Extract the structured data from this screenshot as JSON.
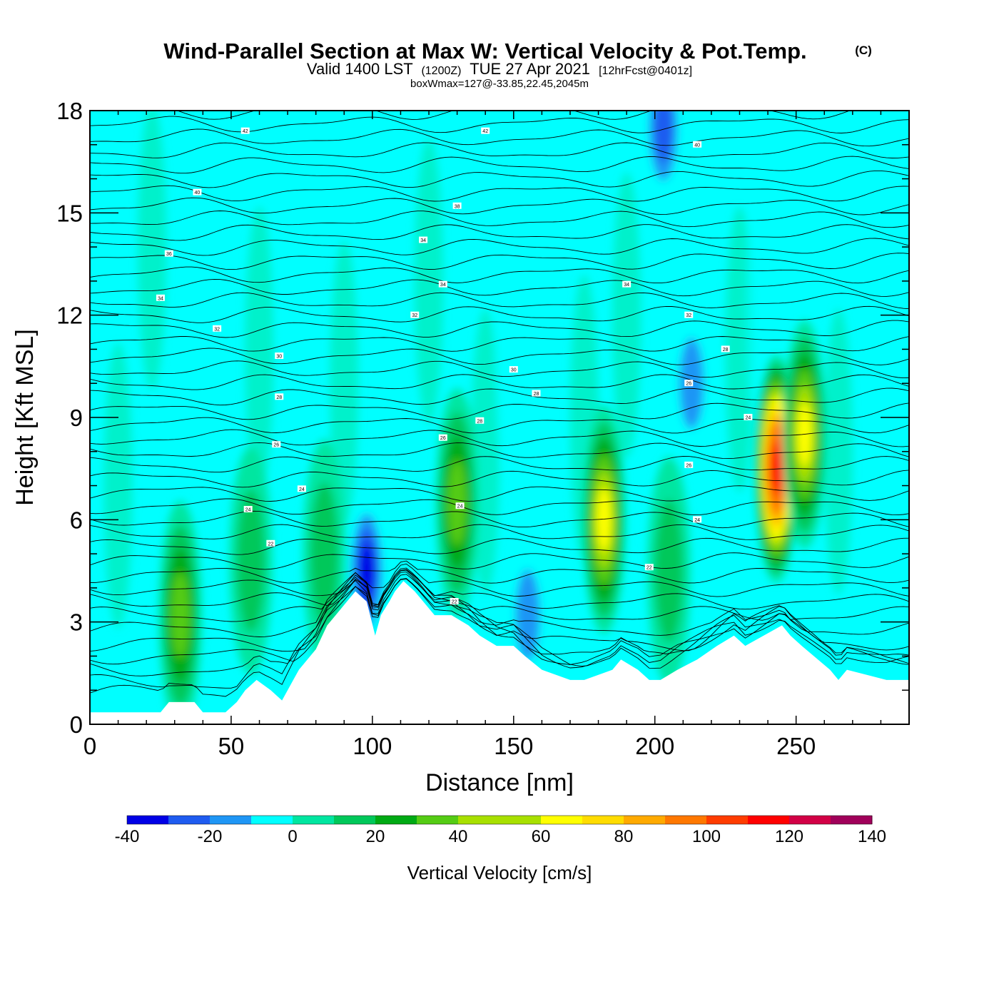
{
  "header": {
    "title_main": "Wind-Parallel Section at Max W: Vertical Velocity & Pot.Temp.",
    "title_mark": "(C)",
    "sub_part1": "Valid 1400 LST",
    "sub_part2": "(1200Z)",
    "sub_part3": "TUE 27 Apr 2021",
    "sub_part4": "[12hrFcst@0401z]",
    "box_info": "boxWmax=127@-33.85,22.45,2045m"
  },
  "chart_data": {
    "type": "heatmap",
    "xlabel": "Distance [nm]",
    "ylabel": "Height [Kft MSL]",
    "xlim": [
      0,
      290
    ],
    "ylim": [
      0,
      18
    ],
    "x_ticks": [
      0,
      50,
      100,
      150,
      200,
      250
    ],
    "y_ticks": [
      0,
      3,
      6,
      9,
      12,
      15,
      18
    ],
    "colorbar": {
      "label": "Vertical Velocity [cm/s]",
      "tick_values": [
        "-40",
        "-20",
        "0",
        "20",
        "40",
        "60",
        "80",
        "100",
        "120",
        "140"
      ],
      "levels": [
        -40,
        140
      ],
      "colors": [
        "#0000e6",
        "#1f5cf0",
        "#1f96f5",
        "#00ffff",
        "#00e6a0",
        "#00c85a",
        "#00aa14",
        "#55cc14",
        "#a8e000",
        "#ffff00",
        "#ffdc00",
        "#ffaa00",
        "#ff7800",
        "#ff3c00",
        "#ff0000",
        "#d20046",
        "#a0005a"
      ]
    },
    "background_color": "#00ffff",
    "updraft_cores": [
      {
        "x": 32,
        "y": 3.2,
        "peak": 40
      },
      {
        "x": 57,
        "y": 4.8,
        "peak": 25
      },
      {
        "x": 83,
        "y": 5.0,
        "peak": 25
      },
      {
        "x": 130,
        "y": 6.5,
        "peak": 40
      },
      {
        "x": 182,
        "y": 6.0,
        "peak": 60
      },
      {
        "x": 205,
        "y": 4.5,
        "peak": 25
      },
      {
        "x": 243,
        "y": 7.5,
        "peak": 120
      },
      {
        "x": 253,
        "y": 8.5,
        "peak": 60
      }
    ],
    "downdraft_cores": [
      {
        "x": 98,
        "y": 4.5,
        "peak": -40
      },
      {
        "x": 155,
        "y": 3.2,
        "peak": -25
      },
      {
        "x": 203,
        "y": 17.5,
        "peak": -30
      },
      {
        "x": 213,
        "y": 10.0,
        "peak": -25
      }
    ],
    "terrain": {
      "x": [
        0,
        25,
        28,
        37,
        40,
        48,
        52,
        55,
        59,
        64,
        68,
        72,
        74,
        80,
        84,
        87,
        91,
        94,
        98,
        101,
        103,
        106,
        108,
        111,
        115,
        118,
        122,
        128,
        134,
        138,
        144,
        150,
        154,
        160,
        170,
        175,
        185,
        188,
        194,
        198,
        202,
        208,
        215,
        222,
        228,
        232,
        245,
        248,
        252,
        262,
        265,
        268,
        282,
        290
      ],
      "y": [
        0.35,
        0.35,
        0.65,
        0.65,
        0.35,
        0.35,
        0.65,
        1.0,
        1.3,
        1.0,
        0.7,
        1.3,
        1.6,
        2.2,
        2.9,
        3.2,
        3.6,
        3.9,
        3.6,
        2.6,
        3.2,
        3.6,
        3.9,
        4.2,
        3.9,
        3.6,
        3.2,
        3.2,
        2.9,
        2.6,
        2.3,
        2.3,
        2.0,
        1.6,
        1.3,
        1.3,
        1.6,
        1.9,
        1.6,
        1.3,
        1.3,
        1.6,
        1.9,
        2.3,
        2.6,
        2.3,
        2.9,
        2.6,
        2.3,
        1.6,
        1.3,
        1.6,
        1.3,
        1.3
      ]
    },
    "theta_contour_labels": [
      "42",
      "40",
      "38",
      "36",
      "34",
      "32",
      "30",
      "28",
      "26",
      "24",
      "22"
    ]
  }
}
